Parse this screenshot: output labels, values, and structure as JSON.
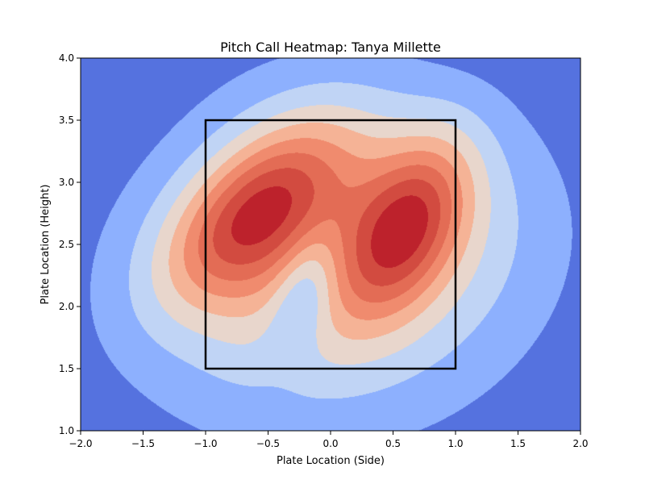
{
  "chart_data": {
    "type": "heatmap",
    "subtype": "filled-contour (KDE)",
    "title": "Pitch Call Heatmap: Tanya Millette",
    "xlabel": "Plate Location (Side)",
    "ylabel": "Plate Location (Height)",
    "xlim": [
      -2.0,
      2.0
    ],
    "ylim": [
      1.0,
      4.0
    ],
    "x_ticks": [
      "−2.0",
      "−1.5",
      "−1.0",
      "−0.5",
      "0.0",
      "0.5",
      "1.0",
      "1.5",
      "2.0"
    ],
    "y_ticks": [
      "1.0",
      "1.5",
      "2.0",
      "2.5",
      "3.0",
      "3.5",
      "4.0"
    ],
    "x_tick_values": [
      -2.0,
      -1.5,
      -1.0,
      -0.5,
      0.0,
      0.5,
      1.0,
      1.5,
      2.0
    ],
    "y_tick_values": [
      1.0,
      1.5,
      2.0,
      2.5,
      3.0,
      3.5,
      4.0
    ],
    "colormap": "coolwarm",
    "level_colors": [
      "#5572df",
      "#8db0fe",
      "#c0d4f5",
      "#e8d6cc",
      "#f5b396",
      "#f08b6e",
      "#e36c55",
      "#d24b40",
      "#bd222c"
    ],
    "hotspots": [
      {
        "x": -0.62,
        "y": 2.75,
        "label": "upper-left of zone (max density)"
      },
      {
        "x": 0.62,
        "y": 2.65,
        "label": "right side of zone (max density)"
      }
    ],
    "local_minimum": {
      "x": -0.2,
      "y": 2.15
    },
    "strike_zone": {
      "x": [
        -1.0,
        1.0
      ],
      "y": [
        1.5,
        3.5
      ],
      "color": "#000000"
    },
    "grid": false,
    "legend": "none"
  }
}
